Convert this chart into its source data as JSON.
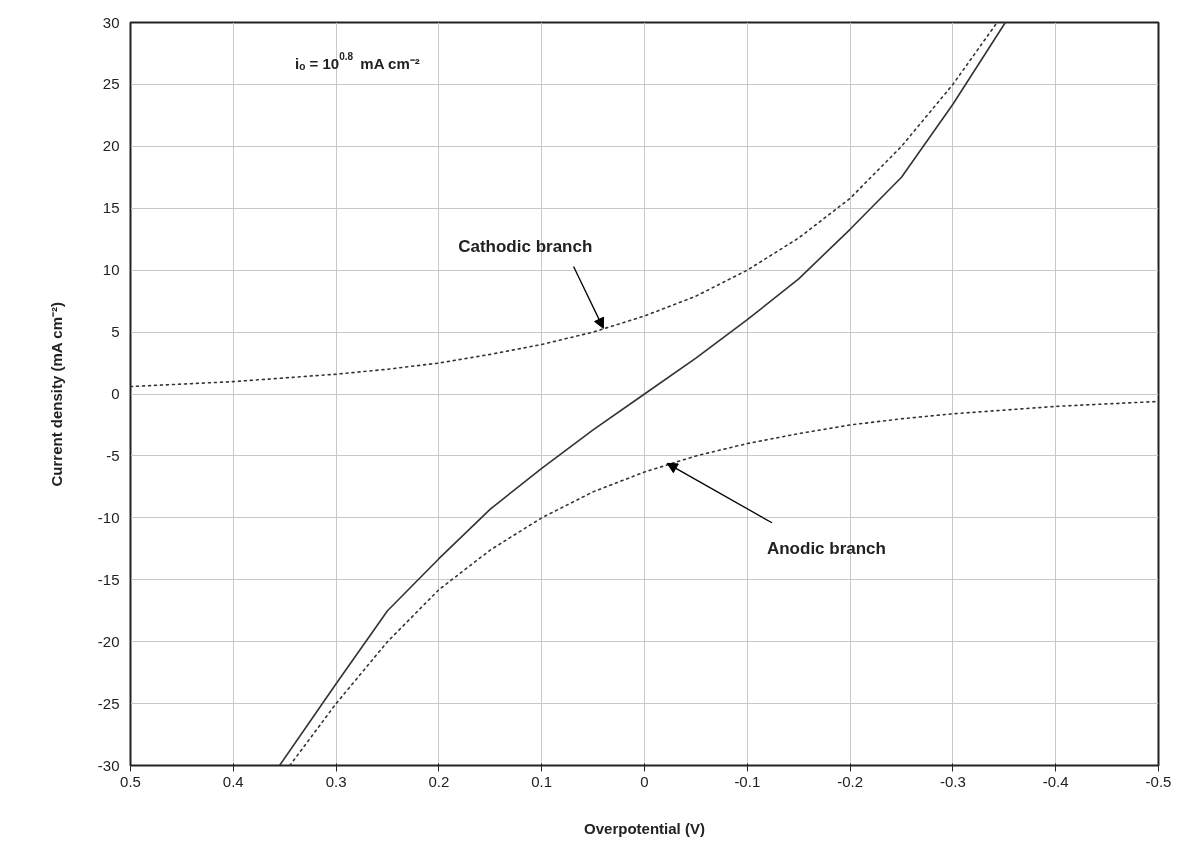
{
  "chart_data": {
    "type": "line",
    "xlabel": "Overpotential (V)",
    "ylabel": "Current density (mA cm⁻²)",
    "xlim": [
      0.5,
      -0.5
    ],
    "xticks": [
      0.5,
      0.4,
      0.3,
      0.2,
      0.1,
      0,
      -0.1,
      -0.2,
      -0.3,
      -0.4,
      -0.5
    ],
    "ylim": [
      -30,
      30
    ],
    "yticks": [
      -30,
      -25,
      -20,
      -15,
      -10,
      -5,
      0,
      5,
      10,
      15,
      20,
      25,
      30
    ],
    "grid": true,
    "series": [
      {
        "color": "#333333",
        "line_style": "dotted",
        "x": [
          0.5,
          0.45,
          0.4,
          0.35,
          0.3,
          0.25,
          0.2,
          0.15,
          0.1,
          0.05,
          0,
          -0.05,
          -0.1,
          -0.15,
          -0.2,
          -0.25,
          -0.3,
          -0.343
        ],
        "values": [
          0.6,
          0.8,
          1.0,
          1.3,
          1.6,
          2.0,
          2.5,
          3.2,
          4.0,
          5.0,
          6.3,
          7.9,
          10,
          12.6,
          15.8,
          20,
          25,
          30
        ]
      },
      {
        "color": "#333333",
        "line_style": "dotted",
        "x": [
          0.345,
          0.3,
          0.25,
          0.2,
          0.15,
          0.1,
          0.05,
          0,
          -0.05,
          -0.1,
          -0.15,
          -0.2,
          -0.25,
          -0.3,
          -0.35,
          -0.4,
          -0.45,
          -0.5
        ],
        "values": [
          -30,
          -25,
          -20,
          -15.8,
          -12.6,
          -10,
          -7.9,
          -6.3,
          -5.0,
          -4.0,
          -3.2,
          -2.5,
          -2.0,
          -1.6,
          -1.3,
          -1.0,
          -0.8,
          -0.6
        ]
      },
      {
        "color": "#333333",
        "line_style": "solid",
        "x": [
          0.355,
          0.3,
          0.25,
          0.2,
          0.15,
          0.1,
          0.05,
          0,
          -0.05,
          -0.1,
          -0.15,
          -0.2,
          -0.25,
          -0.3,
          -0.351
        ],
        "values": [
          -30,
          -23.4,
          -17.5,
          -13.3,
          -9.3,
          -6,
          -2.9,
          0,
          2.9,
          6,
          9.3,
          13.3,
          17.5,
          23.4,
          30
        ]
      }
    ],
    "annotations": [
      "iₒ = 10$^{0.8}$ mA cm⁻²",
      {
        "text": "Cathodic branch",
        "x": 0.04,
        "y": 5.3
      },
      {
        "text": "Anodic branch",
        "x": -0.022,
        "y": -5.6
      }
    ]
  }
}
